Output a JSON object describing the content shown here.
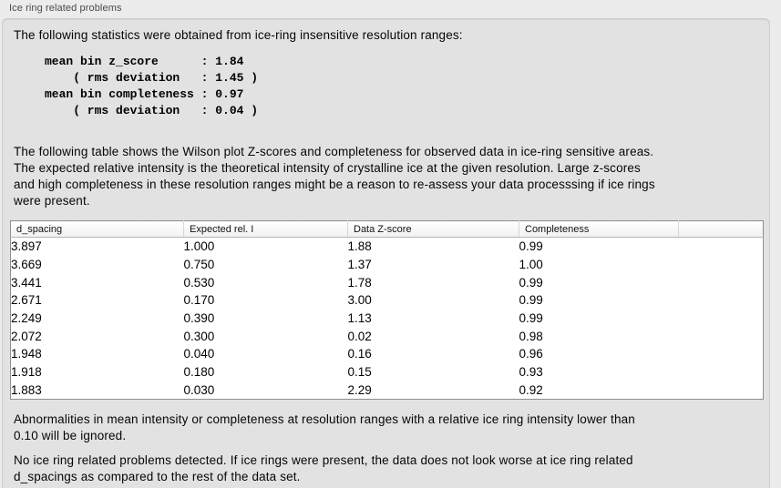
{
  "group": {
    "title": "Ice ring related problems"
  },
  "panel": {
    "intro": "The following statistics were obtained from ice-ring insensitive resolution ranges:",
    "stats_block": "mean bin z_score      : 1.84\n    ( rms deviation   : 1.45 )\nmean bin completeness : 0.97\n    ( rms deviation   : 0.04 )",
    "stats": {
      "mean_bin_z_score": "1.84",
      "z_score_rms_deviation": "1.45",
      "mean_bin_completeness": "0.97",
      "completeness_rms_deviation": "0.04"
    },
    "description_lines": [
      "The following table shows the Wilson plot Z-scores and completeness for observed data in ice-ring sensitive areas.",
      "The expected relative intensity is the theoretical intensity of crystalline ice at the given resolution. Large z-scores",
      "and high completeness in these resolution ranges might be a reason to re-assess your data processsing if ice rings",
      "were present."
    ],
    "table": {
      "columns": [
        "d_spacing",
        "Expected rel. I",
        "Data Z-score",
        "Completeness",
        ""
      ],
      "rows": [
        [
          "3.897",
          "1.000",
          "1.88",
          "0.99"
        ],
        [
          "3.669",
          "0.750",
          "1.37",
          "1.00"
        ],
        [
          "3.441",
          "0.530",
          "1.78",
          "0.99"
        ],
        [
          "2.671",
          "0.170",
          "3.00",
          "0.99"
        ],
        [
          "2.249",
          "0.390",
          "1.13",
          "0.99"
        ],
        [
          "2.072",
          "0.300",
          "0.02",
          "0.98"
        ],
        [
          "1.948",
          "0.040",
          "0.16",
          "0.96"
        ],
        [
          "1.918",
          "0.180",
          "0.15",
          "0.93"
        ],
        [
          "1.883",
          "0.030",
          "2.29",
          "0.92"
        ]
      ]
    },
    "note_lines": [
      "Abnormalities in mean intensity or completeness at resolution ranges with a relative ice ring intensity lower than",
      "0.10 will be ignored."
    ],
    "conclusion_lines": [
      "No ice ring related problems detected. If ice rings were present, the data does not look worse at ice ring related",
      "d_spacings as compared to the rest of the data set."
    ]
  },
  "colors": {
    "page_bg": "#ececec",
    "panel_bg": "#e2e2e2",
    "table_border": "#8f8f8f",
    "header_border": "#b5b5b5"
  }
}
